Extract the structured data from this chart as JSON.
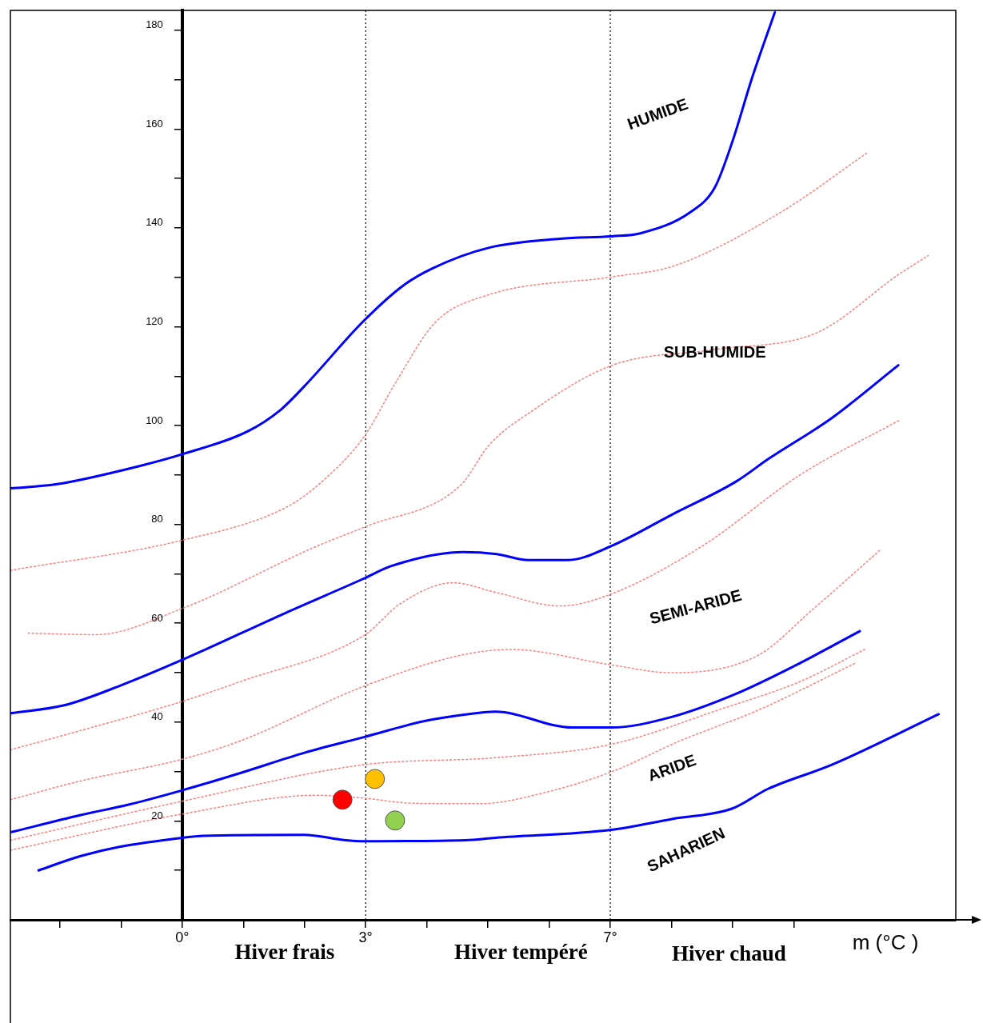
{
  "chart_data": {
    "type": "line",
    "xlabel": "m (°C )",
    "xlim": [
      -2.81,
      12.65
    ],
    "ylim": [
      0,
      184
    ],
    "xticks": [
      {
        "value": -2,
        "label": null
      },
      {
        "value": -1,
        "label": null
      },
      {
        "value": 0,
        "label": "0°"
      },
      {
        "value": 1,
        "label": null
      },
      {
        "value": 2,
        "label": null
      },
      {
        "value": 3,
        "label": "3°"
      },
      {
        "value": 4,
        "label": null
      },
      {
        "value": 5,
        "label": null
      },
      {
        "value": 6,
        "label": null
      },
      {
        "value": 7,
        "label": "7°"
      },
      {
        "value": 8,
        "label": null
      },
      {
        "value": 9,
        "label": null
      },
      {
        "value": 10,
        "label": null
      }
    ],
    "yticks": [
      {
        "value": 10,
        "label": null
      },
      20,
      {
        "value": 30,
        "label": null
      },
      40,
      {
        "value": 50,
        "label": null
      },
      60,
      {
        "value": 70,
        "label": null
      },
      80,
      {
        "value": 90,
        "label": null
      },
      100,
      {
        "value": 110,
        "label": null
      },
      120,
      {
        "value": 130,
        "label": null
      },
      140,
      {
        "value": 150,
        "label": null
      },
      160,
      {
        "value": 170,
        "label": null
      },
      180
    ],
    "grid": false,
    "legend": false,
    "ref_lines": [
      {
        "axis": "x",
        "value": 3,
        "label": null,
        "color": "#000000",
        "line_style": "dotted"
      },
      {
        "axis": "x",
        "value": 7,
        "label": null,
        "color": "#000000",
        "line_style": "dotted"
      }
    ],
    "annotations": [
      "HUMIDE",
      "SUB-HUMIDE",
      "SEMI-ARIDE",
      "ARIDE",
      "SAHARIEN",
      "Hiver frais",
      "Hiver tempéré",
      "Hiver chaud"
    ],
    "series": [
      {
        "type": "line",
        "color": "#0000ff",
        "line_style": "solid",
        "x": [
          -2.81,
          -2.07,
          -0.64,
          0,
          1.08,
          1.61,
          2.0,
          2.97,
          3.61,
          4.09,
          5.02,
          6.18,
          7.03,
          7.49,
          8.3,
          8.71,
          8.99,
          9.32,
          9.69
        ],
        "values": [
          87.3,
          88.1,
          92.0,
          94.2,
          98.9,
          103.2,
          108.0,
          121.2,
          128.3,
          131.8,
          136.0,
          137.8,
          138.3,
          138.9,
          143.1,
          148.2,
          157.2,
          170.4,
          183.6
        ]
      },
      {
        "type": "line",
        "color": "#0000ff",
        "line_style": "solid",
        "x": [
          -2.81,
          -1.93,
          -1.01,
          0,
          1.69,
          2.98,
          3.4,
          4.59,
          5.14,
          5.66,
          6.31,
          7.01,
          8.01,
          9.06,
          9.58,
          10.63,
          11.71
        ],
        "values": [
          41.8,
          43.4,
          47.4,
          52.6,
          62.1,
          69.1,
          71.5,
          74.4,
          74.0,
          72.8,
          72.8,
          75.6,
          82.0,
          88.7,
          93.2,
          101.6,
          112.2
        ]
      },
      {
        "type": "line",
        "color": "#0000ff",
        "line_style": "solid",
        "x": [
          -2.81,
          -1.66,
          -0.88,
          0,
          0.95,
          2.0,
          2.98,
          3.96,
          4.61,
          5.12,
          6.38,
          7.01,
          7.99,
          9.05,
          10.0,
          11.08
        ],
        "values": [
          17.7,
          21.2,
          23.3,
          26.2,
          29.7,
          33.8,
          37.0,
          40.2,
          41.5,
          42.1,
          38.9,
          38.9,
          41.0,
          45.7,
          51.3,
          58.4
        ]
      },
      {
        "type": "line",
        "color": "#0000ff",
        "line_style": "solid",
        "x": [
          -2.35,
          -1.66,
          -1.01,
          0,
          0.34,
          1.99,
          2.67,
          2.98,
          4.63,
          5.12,
          7.01,
          8.01,
          8.99,
          9.58,
          10.63,
          12.37
        ],
        "values": [
          10.0,
          12.9,
          14.8,
          16.6,
          17.0,
          17.2,
          16.1,
          15.9,
          16.1,
          16.6,
          18.2,
          20.4,
          22.5,
          26.5,
          31.4,
          41.6
        ]
      },
      {
        "type": "line",
        "color": "#ff8080",
        "line_style": "dotted",
        "x": [
          -2.81,
          0,
          1.69,
          2.26,
          2.97,
          3.48,
          4.14,
          5.02,
          7.03,
          8.04,
          9.78,
          11.19
        ],
        "values": [
          70.7,
          76.8,
          83.4,
          88.4,
          97.7,
          108.5,
          120.9,
          126.5,
          130.1,
          132.3,
          143.1,
          155.1
        ]
      },
      {
        "type": "line",
        "color": "#ff8080",
        "line_style": "dotted",
        "x": [
          -2.52,
          -1.41,
          0,
          2.2,
          3.01,
          4.55,
          5.02,
          5.69,
          7.03,
          8.71,
          10.38,
          11.73,
          12.2
        ],
        "values": [
          58.0,
          57.7,
          63.0,
          75.6,
          79.6,
          87.9,
          96.1,
          102.7,
          112.2,
          115.4,
          118.8,
          130.7,
          134.4
        ]
      },
      {
        "type": "line",
        "color": "#ff8080",
        "line_style": "dotted",
        "x": [
          -2.81,
          -1.66,
          0,
          0.95,
          2.98,
          3.57,
          4.43,
          5.14,
          6.18,
          7.01,
          8.5,
          10.1,
          11.73
        ],
        "values": [
          34.4,
          38.3,
          44.2,
          48.2,
          57.6,
          64.0,
          68.2,
          66.2,
          63.5,
          65.9,
          75.6,
          90.0,
          101.1
        ]
      },
      {
        "type": "line",
        "color": "#ff8080",
        "line_style": "dotted",
        "x": [
          -2.81,
          -1.66,
          0,
          0.95,
          2.98,
          4.54,
          5.37,
          7.01,
          7.99,
          9.4,
          10.3,
          11.41
        ],
        "values": [
          24.3,
          28.1,
          32.5,
          36.2,
          47.3,
          53.5,
          54.7,
          51.6,
          50.0,
          53.4,
          62.7,
          74.8
        ]
      },
      {
        "type": "line",
        "color": "#ff8080",
        "line_style": "dotted",
        "x": [
          -2.81,
          0,
          2.98,
          5.12,
          7.01,
          8.8,
          10.1,
          11.16
        ],
        "values": [
          16.1,
          24.0,
          31.4,
          32.8,
          35.5,
          42.6,
          48.2,
          54.7
        ]
      },
      {
        "type": "line",
        "color": "#ff8080",
        "line_style": "dotted",
        "x": [
          -2.81,
          0,
          2.2,
          2.98,
          3.75,
          4.88,
          5.88,
          7.01,
          8.14,
          9.45,
          11.0
        ],
        "values": [
          14.1,
          21.4,
          25.2,
          24.6,
          23.6,
          23.5,
          25.6,
          29.9,
          36.2,
          42.6,
          51.9
        ]
      },
      {
        "type": "scatter",
        "color": "#ffc000",
        "marker": "circle",
        "x": [
          3.15
        ],
        "values": [
          28.5
        ]
      },
      {
        "type": "scatter",
        "color": "#ff0000",
        "marker": "circle",
        "x": [
          2.62
        ],
        "values": [
          24.3
        ]
      },
      {
        "type": "scatter",
        "color": "#92d050",
        "marker": "circle",
        "x": [
          3.48
        ],
        "values": [
          20.1
        ]
      }
    ]
  }
}
